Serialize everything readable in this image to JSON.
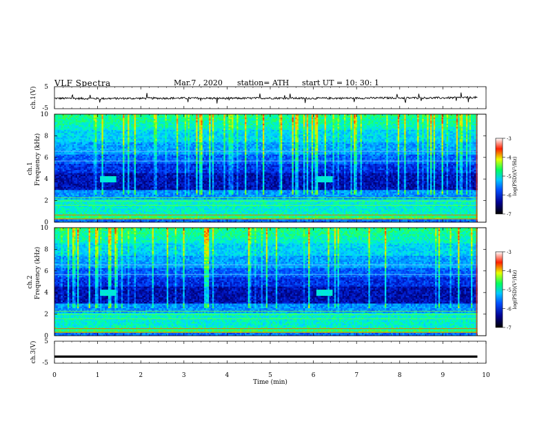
{
  "header": {
    "title": "VLF  Spectra",
    "date": "Mar.7  , 2020",
    "station": "station= ATH",
    "start_ut": "start  UT  =   10: 30: 1"
  },
  "chart_data": [
    {
      "type": "line",
      "panel": "ch1-waveform",
      "ylabel": "ch.1(V)",
      "ylim": [
        -5,
        5
      ],
      "ytick_labels": [
        "5",
        "-5"
      ],
      "xlim": [
        0,
        10
      ],
      "description_of_trace": "noisy waveform around -0.3 V with sparse spikes up to about +2 V and down to about -2.5 V, ends at 9.8 min",
      "x": [
        0,
        1,
        2,
        3,
        4,
        5,
        6,
        7,
        8,
        9,
        9.8
      ],
      "y": [
        -0.3,
        -0.4,
        -0.3,
        -0.2,
        -0.3,
        -0.2,
        -0.3,
        -0.2,
        -0.1,
        -0.1,
        0.1
      ]
    },
    {
      "type": "heatmap",
      "panel": "ch1-spectrogram",
      "ylabel_top": "ch.1",
      "ylabel": "Frequency  (kHz)",
      "yticks": [
        0,
        2,
        4,
        6,
        8,
        10
      ],
      "ylim": [
        0,
        10
      ],
      "xlim": [
        0,
        10
      ],
      "data_end_min": 9.8,
      "colorbar": {
        "label": "log(PSD)(V²/Hz)",
        "ticks": [
          -3,
          -4,
          -5,
          -6,
          -7
        ],
        "range": [
          -7,
          -3
        ]
      },
      "features": [
        {
          "name": "hiss-patch-1",
          "t_min": 1.25,
          "freq_khz": 4.0
        },
        {
          "name": "hiss-patch-2",
          "t_min": 6.25,
          "freq_khz": 4.0
        }
      ]
    },
    {
      "type": "heatmap",
      "panel": "ch2-spectrogram",
      "ylabel_top": "ch.2",
      "ylabel": "Frequency  (kHz)",
      "yticks": [
        0,
        2,
        4,
        6,
        8,
        10
      ],
      "ylim": [
        0,
        10
      ],
      "xlim": [
        0,
        10
      ],
      "data_end_min": 9.8,
      "colorbar": {
        "label": "log(PSD)(V²/Hz)",
        "ticks": [
          -3,
          -4,
          -5,
          -6,
          -7
        ],
        "range": [
          -7,
          -3
        ]
      },
      "features": [
        {
          "name": "hiss-patch-1",
          "t_min": 1.25,
          "freq_khz": 4.0
        },
        {
          "name": "hiss-patch-2",
          "t_min": 6.25,
          "freq_khz": 4.0
        }
      ]
    },
    {
      "type": "line",
      "panel": "ch3-waveform",
      "ylabel": "ch.3(V)",
      "ylim": [
        -5,
        5
      ],
      "ytick_labels": [
        "5",
        "-5"
      ],
      "xlim": [
        0,
        10
      ],
      "x": [
        0,
        9.8
      ],
      "y": [
        -2,
        -2
      ],
      "xlabel": "Time  (min)",
      "xtick_labels": [
        "0",
        "1",
        "2",
        "3",
        "4",
        "5",
        "6",
        "7",
        "8",
        "9",
        "10"
      ]
    }
  ]
}
